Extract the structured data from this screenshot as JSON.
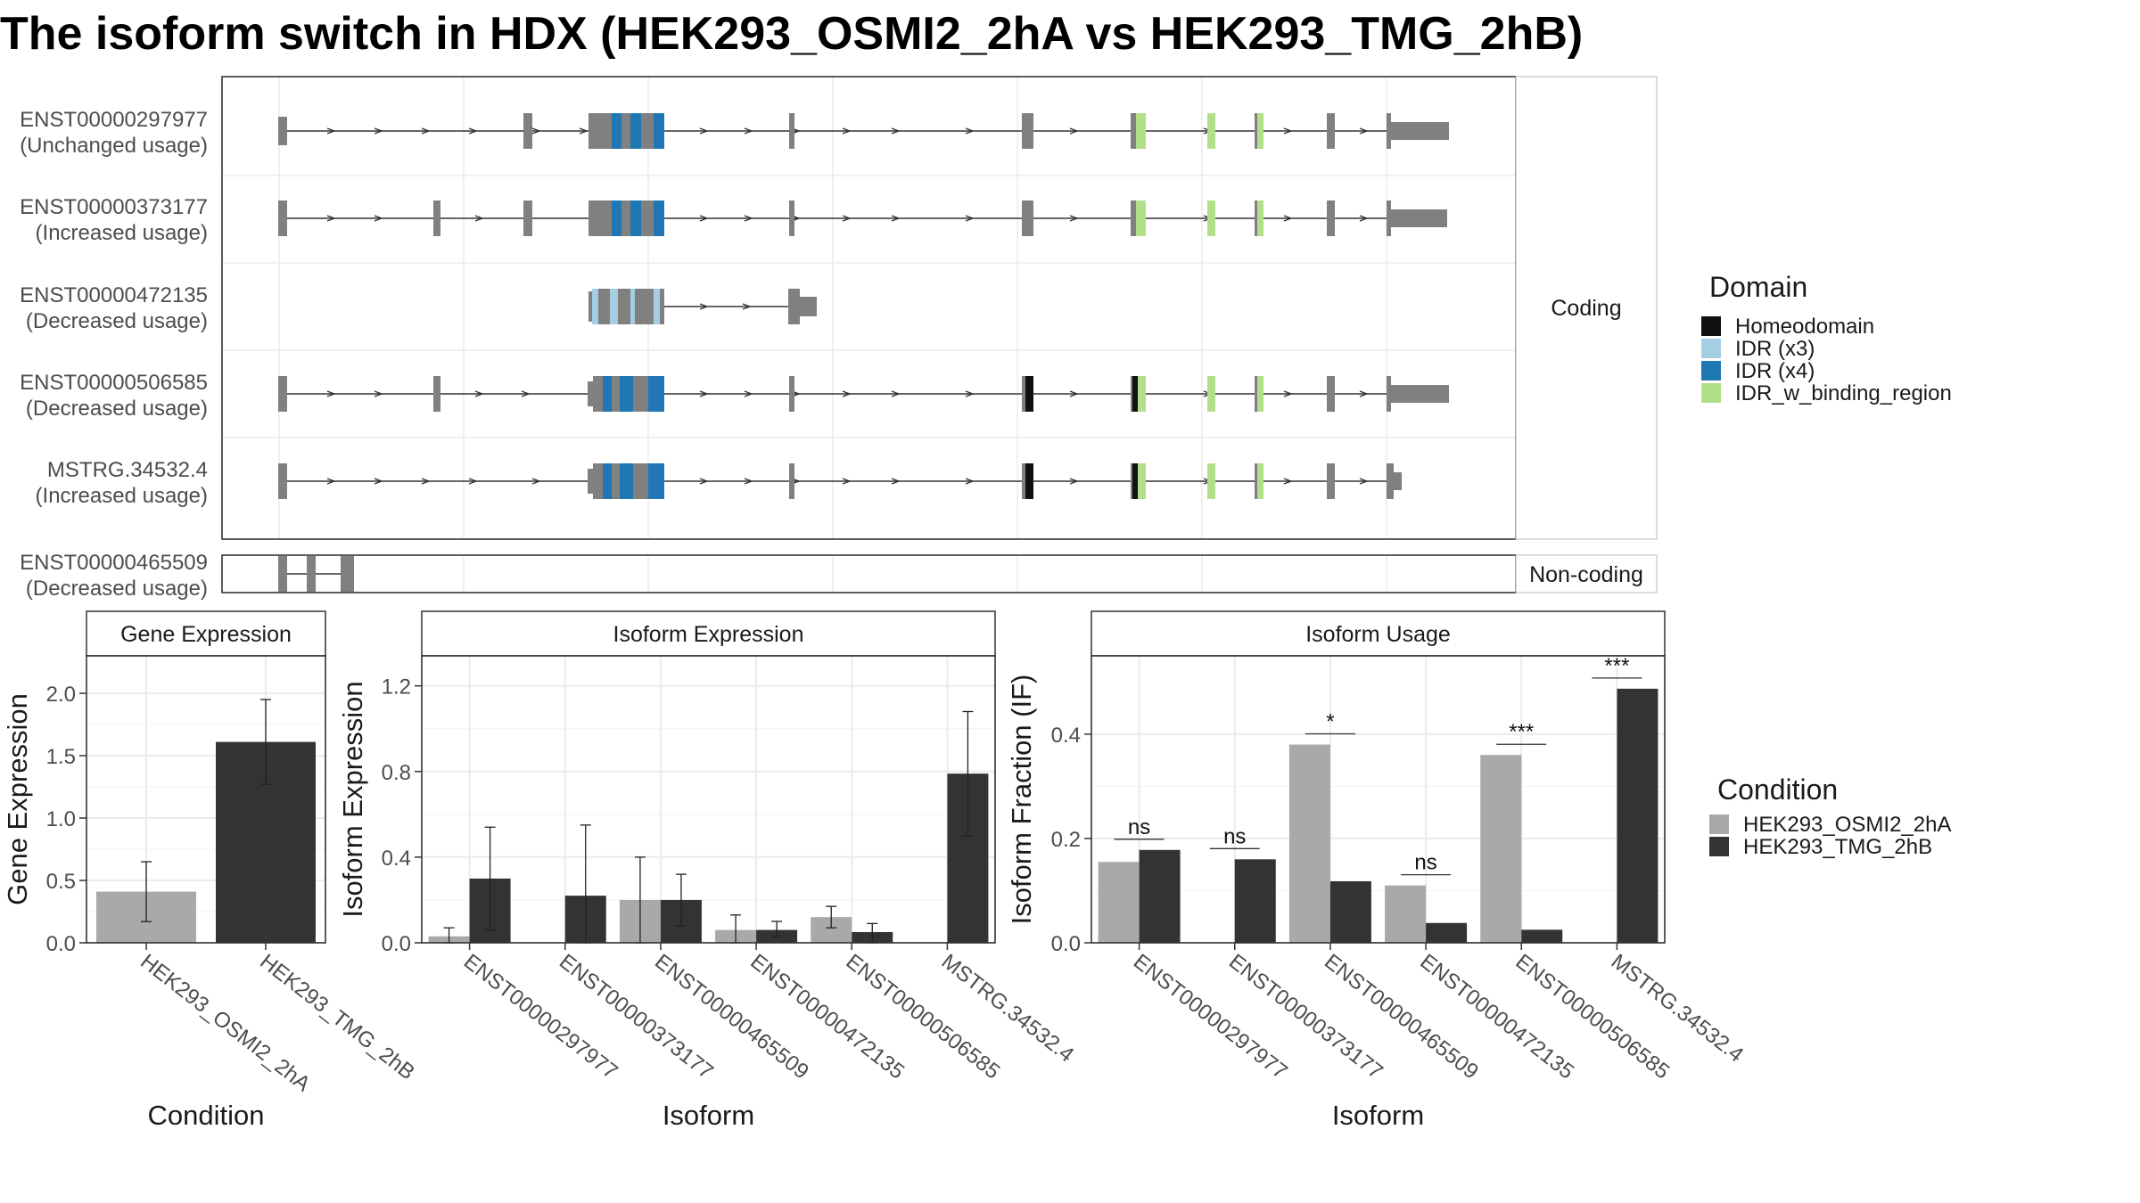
{
  "title": "The isoform switch in HDX (HEK293_OSMI2_2hA vs HEK293_TMG_2hB)",
  "colors": {
    "homeodomain": "#111111",
    "idr_x3": "#a6cee3",
    "idr_x4": "#1f78b4",
    "idr_w_binding_region": "#b2df8a",
    "exon": "#808080",
    "cond_a": "#a9a9a9",
    "cond_b": "#333333",
    "grid": "#ebebeb",
    "panel_border": "#333333"
  },
  "transcripts": [
    {
      "id": "ENST00000297977",
      "usage": "(Unchanged usage)",
      "group": "coding"
    },
    {
      "id": "ENST00000373177",
      "usage": "(Increased usage)",
      "group": "coding"
    },
    {
      "id": "ENST00000472135",
      "usage": "(Decreased usage)",
      "group": "coding"
    },
    {
      "id": "ENST00000506585",
      "usage": "(Decreased usage)",
      "group": "coding"
    },
    {
      "id": "MSTRG.34532.4",
      "usage": "(Increased usage)",
      "group": "coding"
    },
    {
      "id": "ENST00000465509",
      "usage": "(Decreased usage)",
      "group": "noncoding"
    }
  ],
  "facets": {
    "coding": "Coding",
    "noncoding": "Non-coding"
  },
  "legend_domain": {
    "title": "Domain",
    "items": [
      {
        "label": "Homeodomain",
        "color": "#111111"
      },
      {
        "label": "IDR (x3)",
        "color": "#a6cee3"
      },
      {
        "label": "IDR (x4)",
        "color": "#1f78b4"
      },
      {
        "label": "IDR_w_binding_region",
        "color": "#b2df8a"
      }
    ]
  },
  "legend_condition": {
    "title": "Condition",
    "items": [
      {
        "label": "HEK293_OSMI2_2hA",
        "color": "#a9a9a9"
      },
      {
        "label": "HEK293_TMG_2hB",
        "color": "#333333"
      }
    ]
  },
  "chart_data": [
    {
      "type": "bar",
      "title": "Gene Expression",
      "xlabel": "Condition",
      "ylabel": "Gene Expression",
      "ylim": [
        0,
        2.3
      ],
      "yticks": [
        "0.0",
        "0.5",
        "1.0",
        "1.5",
        "2.0"
      ],
      "categories": [
        "HEK293_OSMI2_2hA",
        "HEK293_TMG_2hB"
      ],
      "values": [
        0.41,
        1.61
      ],
      "error_low": [
        0.17,
        1.27
      ],
      "error_high": [
        0.65,
        1.95
      ]
    },
    {
      "type": "bar",
      "title": "Isoform Expression",
      "xlabel": "Isoform",
      "ylabel": "Isoform Expression",
      "ylim": [
        0,
        1.34
      ],
      "yticks": [
        "0.0",
        "0.4",
        "0.8",
        "1.2"
      ],
      "categories": [
        "ENST00000297977",
        "ENST00000373177",
        "ENST00000465509",
        "ENST00000472135",
        "ENST00000506585",
        "MSTRG.34532.4"
      ],
      "series": [
        {
          "name": "HEK293_OSMI2_2hA",
          "values": [
            0.03,
            0.0,
            0.2,
            0.06,
            0.12,
            0.0
          ],
          "error_low": [
            0.0,
            0.0,
            0.0,
            0.0,
            0.07,
            0.0
          ],
          "error_high": [
            0.07,
            0.0,
            0.4,
            0.13,
            0.17,
            0.0
          ]
        },
        {
          "name": "HEK293_TMG_2hB",
          "values": [
            0.3,
            0.22,
            0.2,
            0.06,
            0.05,
            0.79
          ],
          "error_low": [
            0.06,
            0.0,
            0.08,
            0.03,
            0.0,
            0.5
          ],
          "error_high": [
            0.54,
            0.55,
            0.32,
            0.1,
            0.09,
            1.08
          ]
        }
      ]
    },
    {
      "type": "bar",
      "title": "Isoform Usage",
      "xlabel": "Isoform",
      "ylabel": "Isoform Fraction (IF)",
      "ylim": [
        0,
        0.55
      ],
      "yticks": [
        "0.0",
        "0.2",
        "0.4"
      ],
      "categories": [
        "ENST00000297977",
        "ENST00000373177",
        "ENST00000465509",
        "ENST00000472135",
        "ENST00000506585",
        "MSTRG.34532.4"
      ],
      "series": [
        {
          "name": "HEK293_OSMI2_2hA",
          "values": [
            0.155,
            0.0,
            0.38,
            0.11,
            0.36,
            0.0
          ]
        },
        {
          "name": "HEK293_TMG_2hB",
          "values": [
            0.178,
            0.16,
            0.118,
            0.038,
            0.025,
            0.487
          ]
        }
      ],
      "significance": [
        "ns",
        "ns",
        "*",
        "ns",
        "***",
        "***"
      ]
    }
  ]
}
